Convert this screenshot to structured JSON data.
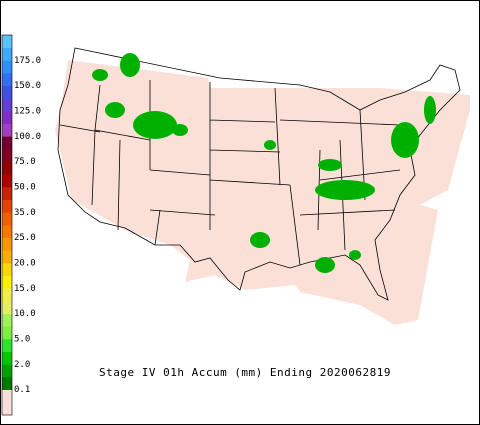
{
  "title": "Stage IV 01h Accum (mm) Ending 2020062819",
  "colorbar": {
    "labels": [
      "0.1",
      "2.0",
      "5.0",
      "10.0",
      "15.0",
      "20.0",
      "25.0",
      "35.0",
      "50.0",
      "75.0",
      "100.0",
      "125.0",
      "150.0",
      "175.0"
    ],
    "colors": [
      "#f8e0da",
      "#f8e0da",
      "#007800",
      "#00a000",
      "#00c800",
      "#30e030",
      "#80f040",
      "#a0f060",
      "#e0f060",
      "#f0f040",
      "#f8f000",
      "#f8d800",
      "#f8b000",
      "#f89800",
      "#f87800",
      "#f06000",
      "#e84000",
      "#d02000",
      "#b00000",
      "#900000",
      "#800020",
      "#700030",
      "#a040c0",
      "#8030c0",
      "#6040d0",
      "#4050e0",
      "#3070f0",
      "#3090f8",
      "#40a8f8",
      "#60c0f8"
    ]
  }
}
